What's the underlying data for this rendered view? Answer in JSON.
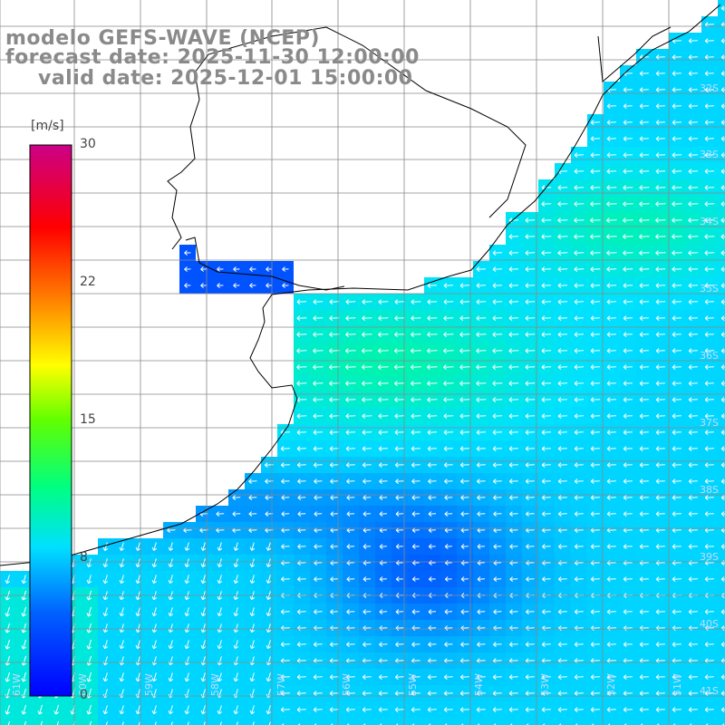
{
  "title": {
    "line1": "modelo GEFS-WAVE (NCEP)",
    "line2": "forecast date: 2025-11-30 12:00:00",
    "line3": "valid date: 2025-12-01 15:00:00"
  },
  "colorbar": {
    "unit": "[m/s]",
    "ticks": [
      "30",
      "22",
      "15",
      "8",
      "0"
    ],
    "tick_values": [
      30,
      22,
      15,
      8,
      0
    ],
    "range": [
      0,
      30
    ]
  },
  "lat_labels": [
    "32S",
    "33S",
    "34S",
    "35S",
    "36S",
    "37S",
    "38S",
    "39S",
    "40S",
    "41S"
  ],
  "lon_labels": [
    "61W",
    "60W",
    "59W",
    "58W",
    "57W",
    "56W",
    "55W",
    "54W",
    "53W",
    "52W",
    "51W"
  ],
  "colors": {
    "land": "#ffffff",
    "coast": "#000000",
    "grid": "#888888",
    "arrow": "#ffffff",
    "title": "#8a8a8a"
  }
}
